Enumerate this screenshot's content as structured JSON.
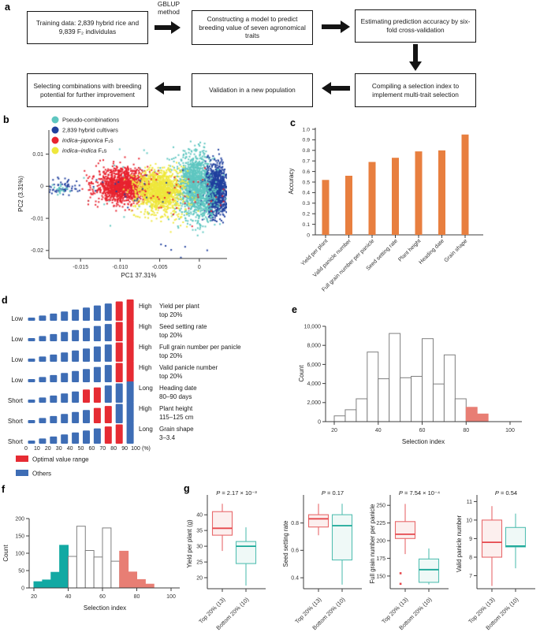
{
  "panels": {
    "a": {
      "letter": "a",
      "gblup": "GBLUP method",
      "boxes": [
        {
          "text": "Training data: 2,839 hybrid rice and 9,839 F₂ individulas"
        },
        {
          "text": "Constructing a model to predict breeding value of seven agronomical traits"
        },
        {
          "text": "Estimating prediction accuracy by six-fold cross-validation"
        },
        {
          "text": "Compiling a selection index to implement multi-trait selection"
        },
        {
          "text": "Validation in a new population"
        },
        {
          "text": "Selecting combinations with breeding potential for further improvement"
        }
      ]
    },
    "b": {
      "letter": "b"
    },
    "c": {
      "letter": "c"
    },
    "d": {
      "letter": "d"
    },
    "e": {
      "letter": "e"
    },
    "f": {
      "letter": "f"
    },
    "g": {
      "letter": "g"
    }
  },
  "chart_data": [
    {
      "id": "pca",
      "type": "scatter",
      "xlabel": "PC1 37.31%",
      "ylabel": "PC2 (3.31%)",
      "xlim": [
        -0.019,
        0.0035
      ],
      "ylim": [
        -0.0225,
        0.0175
      ],
      "xticks": [
        {
          "v": -0.015,
          "label": "-0.015"
        },
        {
          "v": -0.01,
          "label": "-0.010"
        },
        {
          "v": -0.005,
          "label": "-0.005"
        },
        {
          "v": 0,
          "label": "0"
        }
      ],
      "yticks": [
        {
          "v": 0.01,
          "label": "0.01"
        },
        {
          "v": 0,
          "label": "0"
        },
        {
          "v": -0.01,
          "label": "-0.01"
        },
        {
          "v": -0.02,
          "label": "-0.02"
        }
      ],
      "legend": [
        {
          "color": "#5ec6c0",
          "parts": [
            {
              "t": "Pseudo-combinations"
            }
          ]
        },
        {
          "color": "#20409e",
          "parts": [
            {
              "t": "2,839 hybrid cultivars"
            }
          ]
        },
        {
          "color": "#e8232f",
          "parts": [
            {
              "t": "indica–japonica",
              "i": true
            },
            {
              "t": " F₁s"
            }
          ]
        },
        {
          "color": "#efe73c",
          "parts": [
            {
              "t": "indica–indica",
              "i": true
            },
            {
              "t": " F₁s"
            }
          ]
        }
      ],
      "clusters": [
        {
          "color": "#5ec6c0",
          "n": 1100,
          "cx": -0.0005,
          "cy": 0.0008,
          "sx": 0.0011,
          "sy": 0.0048
        },
        {
          "color": "#5ec6c0",
          "n": 140,
          "cx": -0.004,
          "cy": 0.0,
          "sx": 0.004,
          "sy": 0.005
        },
        {
          "color": "#e8232f",
          "n": 1250,
          "cx": -0.0097,
          "cy": 0.0002,
          "sx": 0.0017,
          "sy": 0.0026
        },
        {
          "color": "#efe73c",
          "n": 1250,
          "cx": -0.0051,
          "cy": -0.0012,
          "sx": 0.0014,
          "sy": 0.003
        },
        {
          "color": "#efe73c",
          "n": 70,
          "cx": -0.0042,
          "cy": -0.008,
          "sx": 0.0016,
          "sy": 0.0025
        },
        {
          "color": "#20409e",
          "n": 950,
          "cx": 0.0022,
          "cy": -0.0012,
          "sx": 0.0007,
          "sy": 0.004
        },
        {
          "color": "#5ec6c0",
          "n": 260,
          "cx": 0.0007,
          "cy": -0.0035,
          "sx": 0.0009,
          "sy": 0.0042
        },
        {
          "color": "#e8232f",
          "n": 55,
          "cx": -0.004,
          "cy": -0.001,
          "sx": 0.0038,
          "sy": 0.0038
        },
        {
          "color": "#20409e",
          "n": 28,
          "cx": -0.006,
          "cy": -0.001,
          "sx": 0.005,
          "sy": 0.0035
        },
        {
          "color": "#20409e",
          "n": 55,
          "cx": -0.0172,
          "cy": -0.0002,
          "sx": 0.0011,
          "sy": 0.0012
        },
        {
          "color": "#5ec6c0",
          "n": 20,
          "cx": -0.0178,
          "cy": -0.0008,
          "sx": 0.0008,
          "sy": 0.0008
        },
        {
          "color": "#20409e",
          "n": 6,
          "cx": -0.0025,
          "cy": -0.019,
          "sx": 0.0018,
          "sy": 0.0012
        }
      ]
    },
    {
      "id": "accuracy",
      "type": "bar",
      "ylabel": "Accuracy",
      "bar_color": "#e87f3f",
      "ylim": [
        0,
        1
      ],
      "ytick_labels": [
        "0",
        "0.1",
        "0.2",
        "0.3",
        "0.4",
        "0.5",
        "0.6",
        "0.7",
        "0.8",
        "0.9",
        "1.0"
      ],
      "categories": [
        "Yield per plant",
        "Valid panicle number",
        "Full grain number per panicle",
        "Seed setting rate",
        "Plant height",
        "Heading date",
        "Grain shape"
      ],
      "values": [
        0.52,
        0.56,
        0.69,
        0.73,
        0.79,
        0.8,
        0.95
      ]
    },
    {
      "id": "optimal",
      "type": "diagram-bars",
      "colors": {
        "red": "#e62b33",
        "blue": "#3e6db5"
      },
      "rows": [
        {
          "left": "Low",
          "right": "High",
          "trait": "Yield per plant",
          "range": "top 20%",
          "red_bars": [
            9,
            10
          ]
        },
        {
          "left": "Low",
          "right": "High",
          "trait": "Seed setting rate",
          "range": "top 20%",
          "red_bars": [
            9,
            10
          ]
        },
        {
          "left": "Low",
          "right": "High",
          "trait": "Full grain number per panicle",
          "range": "top 20%",
          "red_bars": [
            9,
            10
          ]
        },
        {
          "left": "Low",
          "right": "High",
          "trait": "Valid panicle number",
          "range": "top 20%",
          "red_bars": [
            9,
            10
          ]
        },
        {
          "left": "Short",
          "right": "Long",
          "trait": "Heading date",
          "range": "80–90 days",
          "red_bars": [
            6,
            7
          ]
        },
        {
          "left": "Short",
          "right": "High",
          "trait": "Plant height",
          "range": "115–125 cm",
          "red_bars": [
            7,
            8
          ]
        },
        {
          "left": "Short",
          "right": "Long",
          "trait": "Grain shape",
          "range": "3–3.4",
          "red_bars": [
            8,
            9
          ]
        }
      ],
      "xtick_labels": [
        "0",
        "10",
        "20",
        "30",
        "40",
        "50",
        "60",
        "70",
        "80",
        "90",
        "100"
      ],
      "x_unit": "(%)",
      "legend": [
        {
          "label": "Optimal value range",
          "color": "#e62b33"
        },
        {
          "label": "Others",
          "color": "#3e6db5"
        }
      ]
    },
    {
      "id": "hist_large",
      "type": "histogram",
      "xlabel": "Selection index",
      "ylabel": "Count",
      "bin_start": 20,
      "bin_width": 5,
      "counts": [
        600,
        1250,
        2400,
        7300,
        4500,
        9250,
        4600,
        4750,
        8700,
        3950,
        7000,
        2400,
        1500,
        800
      ],
      "bin_colors": [
        "white",
        "white",
        "white",
        "white",
        "white",
        "white",
        "white",
        "white",
        "white",
        "white",
        "white",
        "white",
        "salmon",
        "salmon"
      ],
      "colors": {
        "white": "#ffffff",
        "outline": "#7f7f7f",
        "salmon": "#e87e74",
        "teal": "#12a9a3"
      },
      "yticks": [
        0,
        2000,
        4000,
        6000,
        8000,
        10000
      ],
      "ytick_labels": [
        "0",
        "2,000",
        "4,000",
        "6,000",
        "8,000",
        "10,000"
      ],
      "xticks": [
        20,
        40,
        60,
        80,
        100
      ]
    },
    {
      "id": "hist_small",
      "type": "histogram",
      "xlabel": "Selection index",
      "ylabel": "Count",
      "bin_start": 20,
      "bin_width": 5,
      "counts": [
        18,
        23,
        45,
        123,
        91,
        178,
        108,
        89,
        173,
        77,
        106,
        46,
        24,
        11
      ],
      "bin_colors": [
        "teal",
        "teal",
        "teal",
        "teal",
        "white",
        "white",
        "white",
        "white",
        "white",
        "white",
        "salmon",
        "salmon",
        "salmon",
        "salmon"
      ],
      "colors": {
        "white": "#ffffff",
        "outline": "#7f7f7f",
        "salmon": "#e87e74",
        "teal": "#12a9a3"
      },
      "yticks": [
        0,
        50,
        100,
        150,
        200
      ],
      "ytick_labels": [
        "0",
        "50",
        "100",
        "150",
        "200"
      ],
      "xticks": [
        20,
        40,
        60,
        80,
        100
      ]
    },
    {
      "id": "boxplots",
      "type": "box",
      "colors": {
        "top": "#e8696b",
        "top_fill": "#fcefee",
        "top_median": "#e5474c",
        "bottom": "#55bfb2",
        "bottom_fill": "#eff9f7",
        "bottom_median": "#18a797"
      },
      "subplots": [
        {
          "p_display": "P = 2.17 × 10⁻³",
          "ylabel": "Yield per plant (g)",
          "ylim": [
            16.5,
            44.8
          ],
          "yticks": [
            "20",
            "25",
            "30",
            "35",
            "40"
          ],
          "groups": [
            {
              "label": "Top 20% (13)",
              "color": "top",
              "lo": 28.5,
              "q1": 33.5,
              "med": 35.7,
              "q3": 41,
              "hi": 43.5,
              "outliers": []
            },
            {
              "label": "Bottom 20% (10)",
              "color": "bottom",
              "lo": 17.5,
              "q1": 24.5,
              "med": 30,
              "q3": 31.5,
              "hi": 36,
              "outliers": []
            }
          ]
        },
        {
          "p_display": "P = 0.17",
          "ylabel": "Seed setting rate",
          "ylim": [
            0.32,
            0.97
          ],
          "yticks": [
            "0.4",
            "0.6",
            "0.8"
          ],
          "groups": [
            {
              "label": "Top 20% (13)",
              "color": "top",
              "lo": 0.71,
              "q1": 0.77,
              "med": 0.83,
              "q3": 0.86,
              "hi": 0.94,
              "outliers": []
            },
            {
              "label": "Bottom 20% (10)",
              "color": "bottom",
              "lo": 0.35,
              "q1": 0.53,
              "med": 0.78,
              "q3": 0.86,
              "hi": 0.94,
              "outliers": []
            }
          ]
        },
        {
          "p_display": "P = 7.54 × 10⁻⁴",
          "ylabel": "Full grain number per panicle",
          "ylim": [
            132,
            258
          ],
          "yticks": [
            "150",
            "175",
            "200",
            "225",
            "250"
          ],
          "groups": [
            {
              "label": "Top 20% (13)",
              "color": "top",
              "lo": 181,
              "q1": 203,
              "med": 209,
              "q3": 227,
              "hi": 252,
              "outliers": [
                154,
                139
              ]
            },
            {
              "label": "Bottom 20% (10)",
              "color": "bottom",
              "lo": 138,
              "q1": 141,
              "med": 159,
              "q3": 174,
              "hi": 189,
              "outliers": []
            }
          ]
        },
        {
          "p_display": "P = 0.54",
          "ylabel": "Valid panicle number",
          "ylim": [
            6.3,
            11.1
          ],
          "yticks": [
            "7",
            "8",
            "9",
            "10",
            "11"
          ],
          "groups": [
            {
              "label": "Top 20% (13)",
              "color": "top",
              "lo": 6.45,
              "q1": 8,
              "med": 8.8,
              "q3": 10,
              "hi": 10.75,
              "outliers": []
            },
            {
              "label": "Bottom 20% (10)",
              "color": "bottom",
              "lo": 7.4,
              "q1": 8.55,
              "med": 8.6,
              "q3": 9.6,
              "hi": 10.35,
              "outliers": []
            }
          ]
        }
      ]
    }
  ]
}
